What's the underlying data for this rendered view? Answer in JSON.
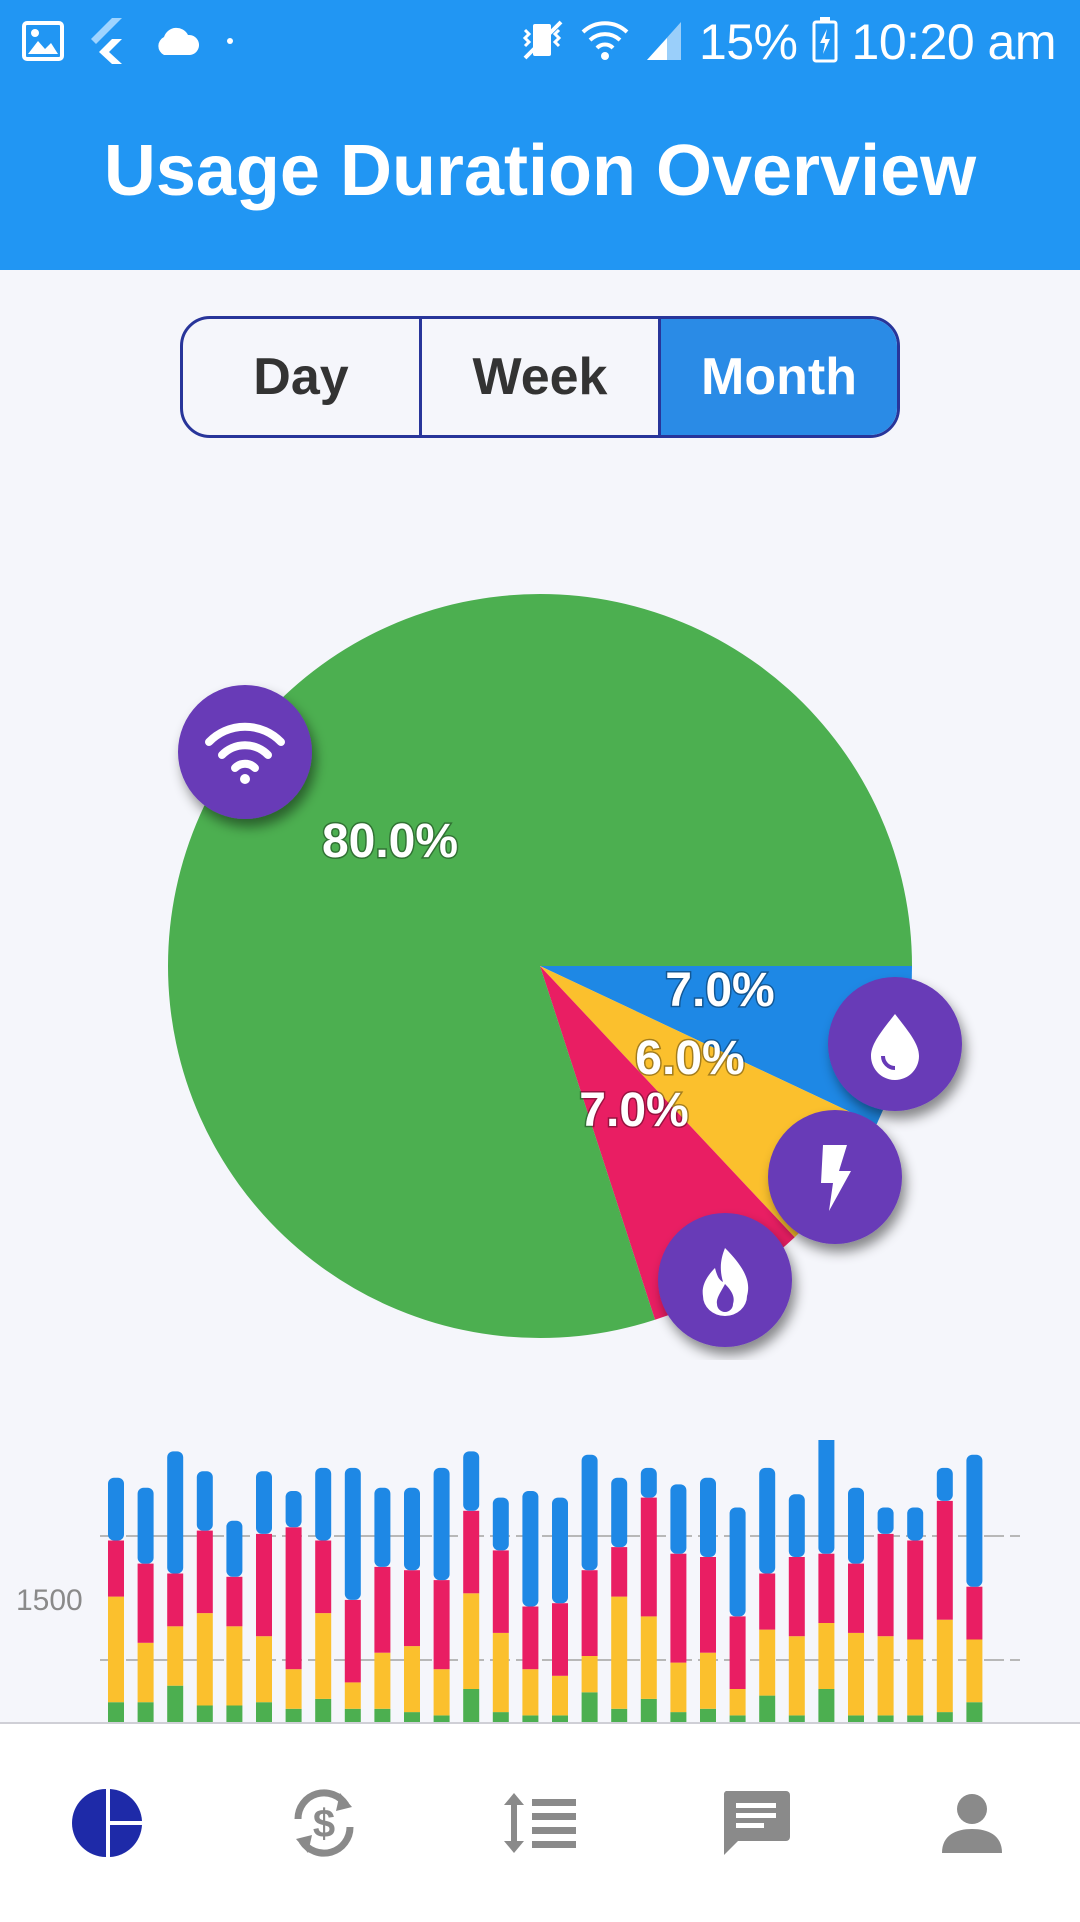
{
  "status_bar": {
    "icons_left": [
      "image-icon",
      "flutter-icon",
      "cloud-icon",
      "dot-icon"
    ],
    "icons_right": [
      "vibrate-icon",
      "wifi-icon",
      "signal-icon",
      "battery-icon"
    ],
    "battery": "15%",
    "time": "10:20 am"
  },
  "app_bar": {
    "title": "Usage Duration Overview"
  },
  "period_selector": {
    "options": [
      "Day",
      "Week",
      "Month"
    ],
    "selected": "Month"
  },
  "colors": {
    "primary": "#2196f3",
    "internet": "#4caf50",
    "water": "#1e88e5",
    "electricity": "#fbc02d",
    "gas": "#e91e63",
    "badge": "#673ab7",
    "nav_active": "#1e2aa8",
    "nav_inactive": "#8a8a8a"
  },
  "chart_data": [
    {
      "type": "pie",
      "slices": [
        {
          "label": "80.0%",
          "value": 80.0,
          "icon": "wifi-icon",
          "color": "#4caf50"
        },
        {
          "label": "7.0%",
          "value": 7.0,
          "icon": "water-drop-icon",
          "color": "#1e88e5"
        },
        {
          "label": "6.0%",
          "value": 6.0,
          "icon": "lightning-icon",
          "color": "#fbc02d"
        },
        {
          "label": "7.0%",
          "value": 7.0,
          "icon": "fire-icon",
          "color": "#e91e63"
        }
      ]
    },
    {
      "type": "bar",
      "stacked": true,
      "ytick_label": "1500",
      "series_order": [
        "internet",
        "electricity",
        "gas",
        "water"
      ],
      "stacks": [
        [
          60,
          320,
          170,
          190
        ],
        [
          60,
          180,
          240,
          230
        ],
        [
          110,
          180,
          160,
          370
        ],
        [
          50,
          280,
          250,
          180
        ],
        [
          50,
          240,
          150,
          170
        ],
        [
          60,
          200,
          310,
          190
        ],
        [
          40,
          120,
          430,
          110
        ],
        [
          70,
          260,
          220,
          220
        ],
        [
          40,
          80,
          250,
          400
        ],
        [
          40,
          170,
          260,
          240
        ],
        [
          30,
          200,
          230,
          250
        ],
        [
          20,
          140,
          270,
          340
        ],
        [
          100,
          290,
          250,
          180
        ],
        [
          30,
          240,
          250,
          160
        ],
        [
          20,
          140,
          190,
          350
        ],
        [
          20,
          120,
          220,
          320
        ],
        [
          90,
          110,
          260,
          350
        ],
        [
          40,
          340,
          150,
          210
        ],
        [
          70,
          250,
          360,
          90
        ],
        [
          30,
          150,
          330,
          210
        ],
        [
          40,
          170,
          290,
          240
        ],
        [
          20,
          80,
          220,
          330
        ],
        [
          80,
          200,
          170,
          320
        ],
        [
          20,
          240,
          240,
          190
        ],
        [
          100,
          200,
          210,
          400
        ],
        [
          20,
          250,
          210,
          230
        ],
        [
          20,
          240,
          310,
          80
        ],
        [
          20,
          230,
          300,
          100
        ],
        [
          30,
          280,
          360,
          100
        ],
        [
          60,
          190,
          160,
          400
        ]
      ]
    }
  ],
  "bottom_nav": {
    "items": [
      {
        "icon": "pie-chart-icon",
        "active": true
      },
      {
        "icon": "currency-exchange-icon",
        "active": false
      },
      {
        "icon": "sort-list-icon",
        "active": false
      },
      {
        "icon": "chat-icon",
        "active": false
      },
      {
        "icon": "person-icon",
        "active": false
      }
    ]
  }
}
